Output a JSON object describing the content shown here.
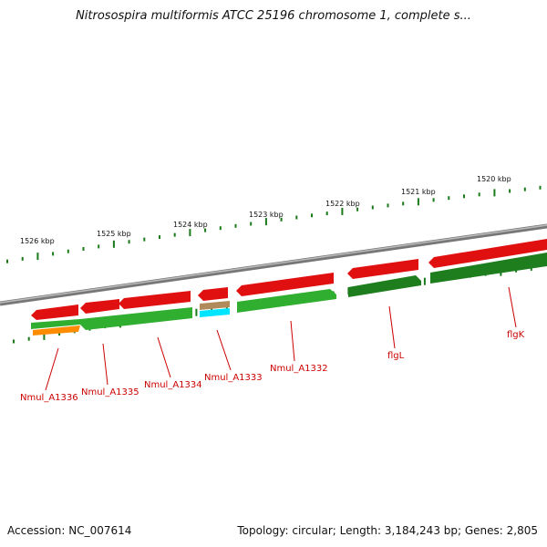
{
  "title": "Nitrosospira multiformis ATCC 25196 chromosome 1, complete s...",
  "footer": {
    "accession": "Accession: NC_007614",
    "summary": "Topology: circular; Length: 3,184,243 bp; Genes: 2,805"
  },
  "colors": {
    "forward_gene": "#e01010",
    "reverse_gene": "#2fae2f",
    "reverse_gene_dark": "#1e7e1e",
    "pseudo_gene": "#ff8c00",
    "rna_gene": "#00e5ff",
    "misc_gene": "#b08a5a",
    "backbone": "#8a8a8a",
    "tick": "#1a7a1a",
    "label": "#cc0000"
  },
  "scale_ticks": [
    {
      "label": "1526 kbp"
    },
    {
      "label": "1525 kbp"
    },
    {
      "label": "1524 kbp"
    },
    {
      "label": "1523 kbp"
    },
    {
      "label": "1522 kbp"
    },
    {
      "label": "1521 kbp"
    },
    {
      "label": "1520 kbp"
    }
  ],
  "gene_labels": [
    {
      "text": "Nmul_A1336"
    },
    {
      "text": "Nmul_A1335"
    },
    {
      "text": "Nmul_A1334"
    },
    {
      "text": "Nmul_A1333"
    },
    {
      "text": "Nmul_A1332"
    },
    {
      "text": "flgL"
    },
    {
      "text": "flgK"
    }
  ]
}
